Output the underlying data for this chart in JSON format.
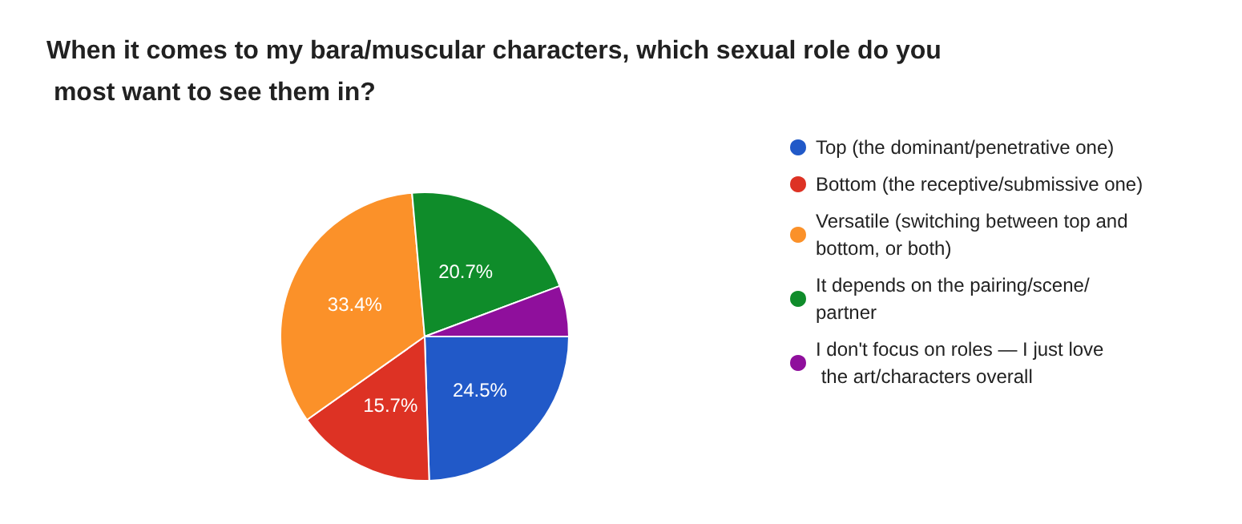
{
  "chart_data": {
    "type": "pie",
    "title": "When it comes to my bara/muscular characters, which sexual role do you most want to see them in?",
    "categories": [
      "Top (the dominant/penetrative one)",
      "Bottom (the receptive/submissive one)",
      "Versatile (switching between top and bottom, or both)",
      "It depends on the pairing/scene/partner",
      "I don't focus on roles — I just love the art/characters overall"
    ],
    "values": [
      24.5,
      15.7,
      33.4,
      20.7,
      5.7
    ],
    "value_labels": [
      "24.5%",
      "15.7%",
      "33.4%",
      "20.7%",
      null
    ],
    "colors": [
      "#2159c8",
      "#dd3224",
      "#fb9129",
      "#0f8c2a",
      "#8f0f9c"
    ],
    "legend": "right"
  }
}
